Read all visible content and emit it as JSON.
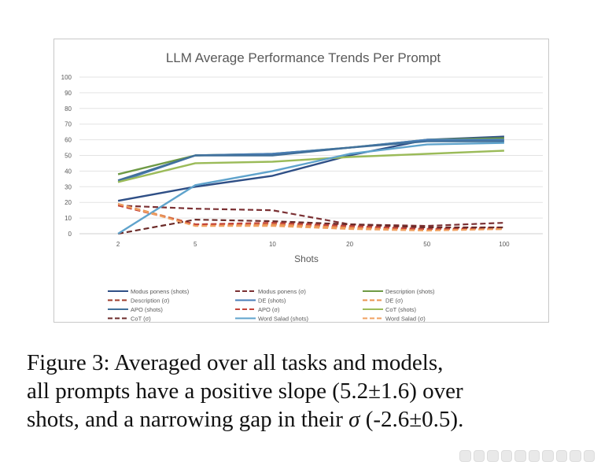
{
  "chart_data": {
    "type": "line",
    "title": "LLM Average Performance Trends Per Prompt",
    "xlabel": "Shots",
    "ylabel": "",
    "categories": [
      "2",
      "5",
      "10",
      "20",
      "50",
      "100"
    ],
    "ylim": [
      0,
      100
    ],
    "yticks": [
      "0",
      "10",
      "20",
      "30",
      "40",
      "50",
      "60",
      "70",
      "80",
      "90",
      "100"
    ],
    "grid": true,
    "legend_position": "bottom",
    "series": [
      {
        "name": "Modus ponens (shots)",
        "values": [
          21,
          30,
          37,
          50,
          60,
          62
        ],
        "color": "#2f4f86",
        "dash": false
      },
      {
        "name": "Modus ponens (σ)",
        "values": [
          18,
          16,
          15,
          6,
          5,
          7
        ],
        "color": "#7b3033",
        "dash": true
      },
      {
        "name": "Description (shots)",
        "values": [
          38,
          50,
          51,
          55,
          60,
          61
        ],
        "color": "#6e9a45",
        "dash": false
      },
      {
        "name": "Description (σ)",
        "values": [
          19,
          6,
          6,
          4,
          3,
          3
        ],
        "color": "#9e3b2b",
        "dash": true
      },
      {
        "name": "DE (shots)",
        "values": [
          33,
          50,
          51,
          55,
          60,
          60
        ],
        "color": "#4a7eb8",
        "dash": false
      },
      {
        "name": "DE (σ)",
        "values": [
          19,
          6,
          6,
          4,
          3,
          3
        ],
        "color": "#e8924f",
        "dash": true
      },
      {
        "name": "APO (shots)",
        "values": [
          34,
          50,
          50,
          55,
          59,
          59
        ],
        "color": "#41709a",
        "dash": false
      },
      {
        "name": "APO (σ)",
        "values": [
          18,
          6,
          7,
          5,
          3,
          4
        ],
        "color": "#c4443a",
        "dash": true
      },
      {
        "name": "CoT (shots)",
        "values": [
          33,
          45,
          46,
          49,
          51,
          53
        ],
        "color": "#9bbb59",
        "dash": false
      },
      {
        "name": "CoT (σ)",
        "values": [
          0,
          9,
          8,
          6,
          4,
          4
        ],
        "color": "#6b2a28",
        "dash": true
      },
      {
        "name": "Word Salad (shots)",
        "values": [
          0,
          31,
          40,
          51,
          57,
          58
        ],
        "color": "#5fa3cc",
        "dash": false
      },
      {
        "name": "Word Salad (σ)",
        "values": [
          19,
          5,
          5,
          3,
          2,
          3
        ],
        "color": "#f0a060",
        "dash": true
      }
    ]
  },
  "caption": {
    "line1": "Figure 3:  Averaged over all tasks and models,",
    "line2": "all prompts have a positive slope (5.2±1.6) over",
    "line3_before": "shots, and a narrowing gap in their ",
    "line3_sigma": "σ",
    "line3_after": " (-2.6±0.5)."
  }
}
